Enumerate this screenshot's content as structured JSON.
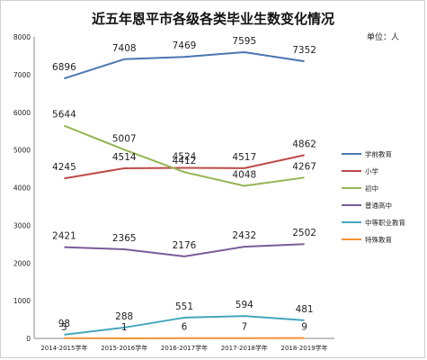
{
  "chart_data": {
    "type": "line",
    "title": "近五年恩平市各级各类毕业生数变化情况",
    "unit_label": "单位：人",
    "categories": [
      "2014-2015学年",
      "2015-2016学年",
      "2016-2017学年",
      "2017-2018学年",
      "2018-2019学年"
    ],
    "ylim": [
      0,
      8000
    ],
    "yticks": [
      0,
      1000,
      2000,
      3000,
      4000,
      5000,
      6000,
      7000,
      8000
    ],
    "grid": false,
    "legend_position": "right",
    "series": [
      {
        "name": "学前教育",
        "color": "#4a76b2",
        "values": [
          6896,
          7408,
          7469,
          7595,
          7352
        ]
      },
      {
        "name": "小学",
        "color": "#bd4b48",
        "values": [
          4245,
          4514,
          4524,
          4517,
          4862
        ]
      },
      {
        "name": "初中",
        "color": "#94b653",
        "values": [
          5644,
          5007,
          4412,
          4048,
          4267
        ]
      },
      {
        "name": "普通高中",
        "color": "#7a5c98",
        "values": [
          2421,
          2365,
          2176,
          2432,
          2502
        ]
      },
      {
        "name": "中等职业教育",
        "color": "#45a6bd",
        "values": [
          98,
          288,
          551,
          594,
          481
        ]
      },
      {
        "name": "特殊教育",
        "color": "#f39234",
        "values": [
          5,
          1,
          6,
          7,
          9
        ]
      }
    ]
  }
}
